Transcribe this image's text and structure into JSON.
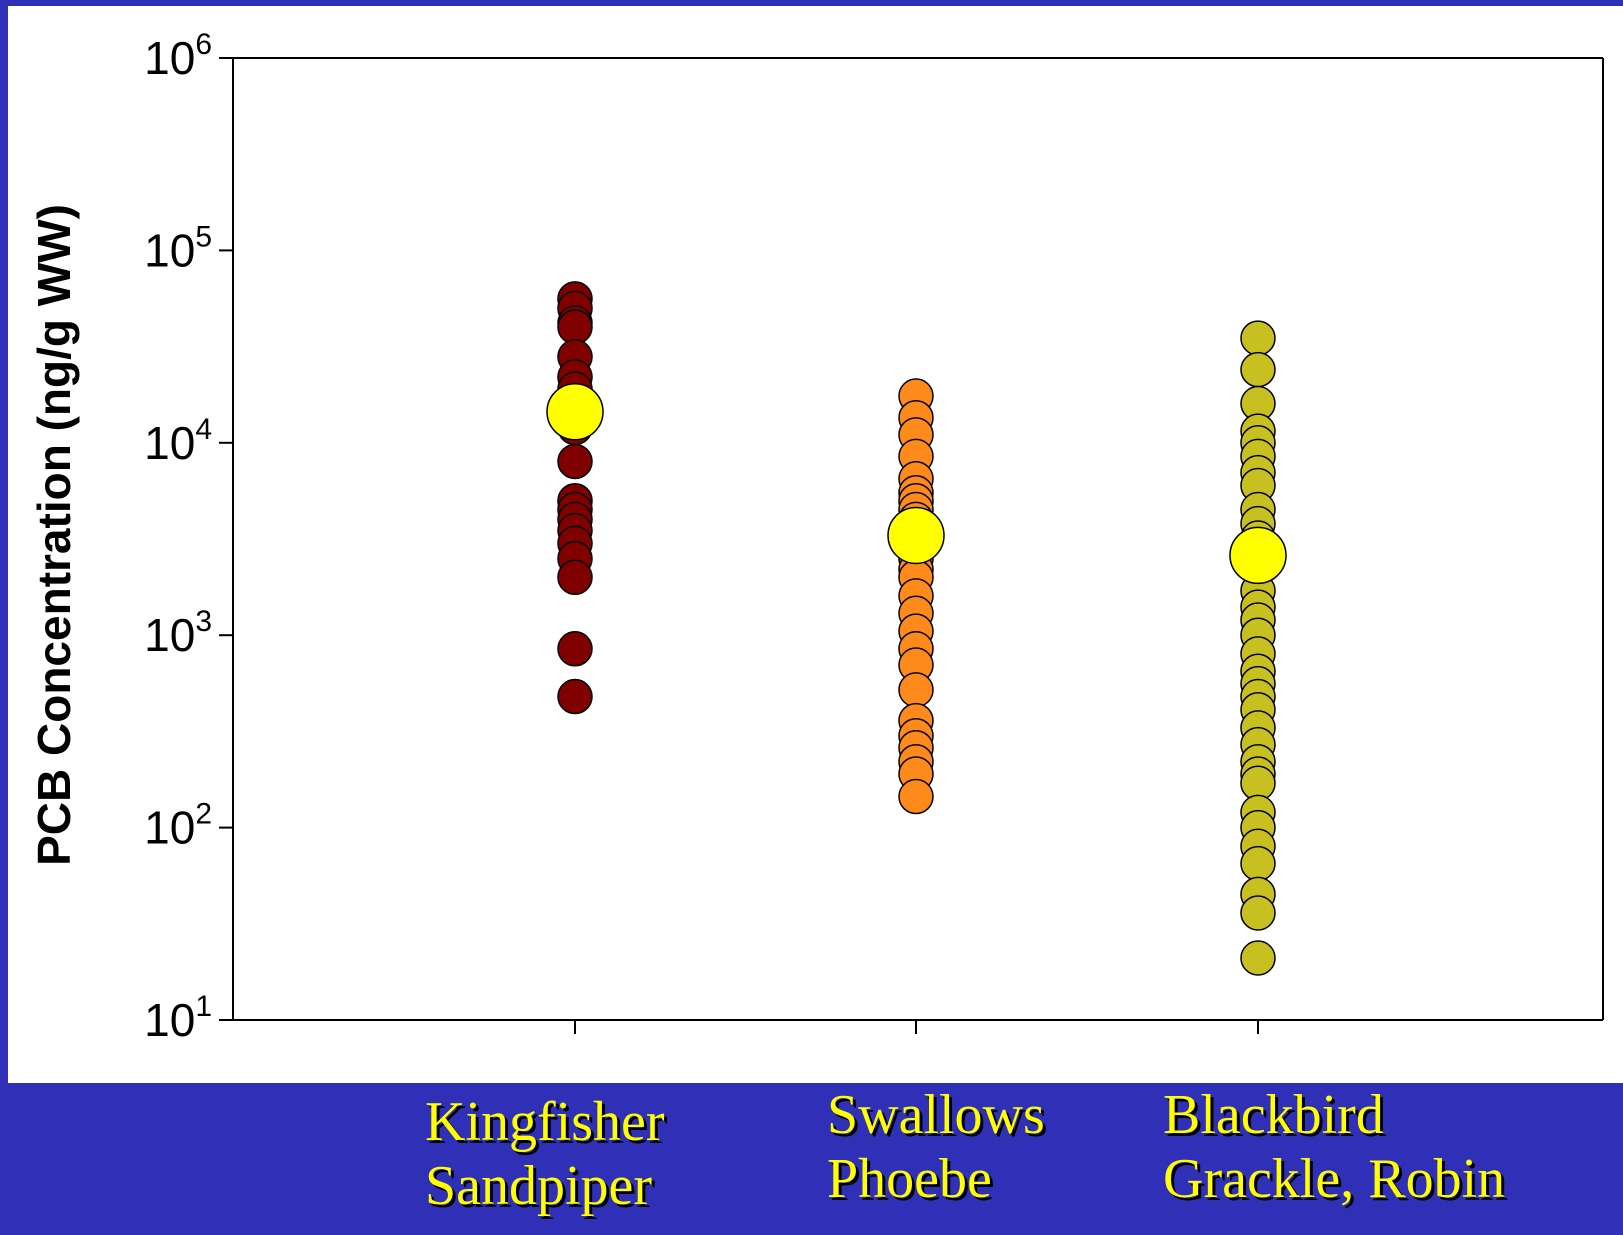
{
  "chart_data": {
    "type": "scatter",
    "title": "",
    "ylabel": "PCB Concentration (ng/g WW)",
    "xlabel": "",
    "yscale": "log",
    "ylim": [
      10,
      1000000
    ],
    "y_ticks": [
      {
        "value": 10,
        "base": "10",
        "exp": "1"
      },
      {
        "value": 100,
        "base": "10",
        "exp": "2"
      },
      {
        "value": 1000,
        "base": "10",
        "exp": "3"
      },
      {
        "value": 10000,
        "base": "10",
        "exp": "4"
      },
      {
        "value": 100000,
        "base": "10",
        "exp": "5"
      },
      {
        "value": 1000000,
        "base": "10",
        "exp": "6"
      }
    ],
    "grid": false,
    "legend": "none",
    "categories": [
      {
        "line1": "Kingfisher",
        "line2": "Sandpiper"
      },
      {
        "line1": "Swallows",
        "line2": "Phoebe"
      },
      {
        "line1": "Blackbird",
        "line2": "Grackle, Robin"
      }
    ],
    "series": [
      {
        "category_index": 0,
        "color": "#800000",
        "values": [
          56000,
          50000,
          42000,
          40000,
          28000,
          22000,
          19000,
          12000,
          8000,
          5000,
          4500,
          4000,
          3500,
          3000,
          2500,
          2000,
          850,
          480
        ]
      },
      {
        "category_index": 1,
        "color": "#ff8a1c",
        "values": [
          17500,
          13500,
          11000,
          8500,
          6500,
          5500,
          5000,
          4500,
          4000,
          2800,
          2500,
          2200,
          2000,
          1600,
          1300,
          1050,
          850,
          700,
          520,
          360,
          300,
          260,
          220,
          190,
          145
        ]
      },
      {
        "category_index": 2,
        "color": "#c8c020",
        "values": [
          35000,
          24000,
          16000,
          11500,
          10000,
          8500,
          7000,
          6000,
          4500,
          3800,
          3200,
          2200,
          1700,
          1400,
          1200,
          1000,
          800,
          650,
          560,
          480,
          410,
          330,
          270,
          220,
          190,
          170,
          120,
          100,
          80,
          65,
          45,
          36,
          21
        ]
      }
    ],
    "means": {
      "color": "#ffff00",
      "values": [
        14500,
        3300,
        2600
      ]
    }
  }
}
